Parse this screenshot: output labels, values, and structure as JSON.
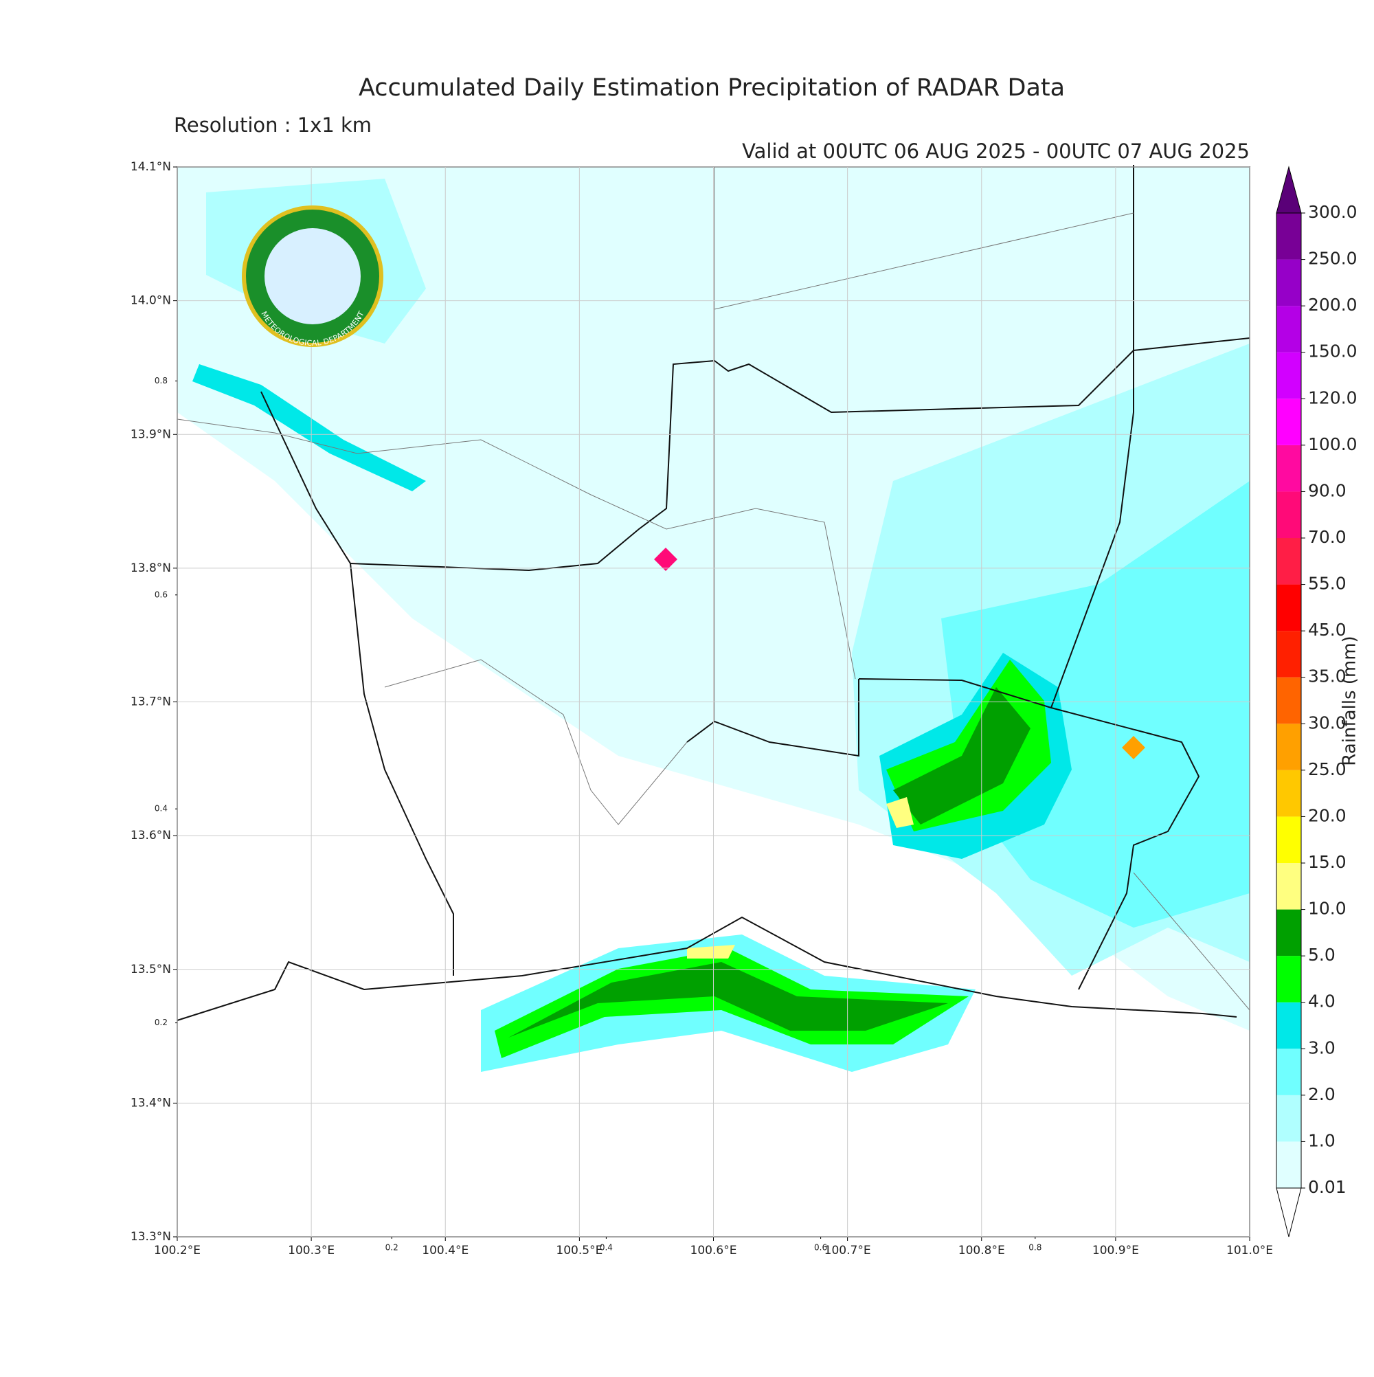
{
  "title": "Accumulated Daily Estimation Precipitation of RADAR Data",
  "subtitle": "Resolution : 1x1 km",
  "valid": "Valid at 00UTC 06 AUG 2025 - 00UTC 07 AUG 2025",
  "logo": {
    "english": "METEOROLOGICAL DEPARTMENT"
  },
  "map": {
    "xlim": [
      100.2,
      101.0
    ],
    "ylim": [
      13.3,
      14.1
    ],
    "xticks": [
      {
        "value": 100.2,
        "label": "100.2°E"
      },
      {
        "value": 100.3,
        "label": "100.3°E"
      },
      {
        "value": 100.4,
        "label": "100.4°E"
      },
      {
        "value": 100.5,
        "label": "100.5°E"
      },
      {
        "value": 100.6,
        "label": "100.6°E"
      },
      {
        "value": 100.7,
        "label": "100.7°E"
      },
      {
        "value": 100.8,
        "label": "100.8°E"
      },
      {
        "value": 100.9,
        "label": "100.9°E"
      },
      {
        "value": 101.0,
        "label": "101.0°E"
      }
    ],
    "yticks": [
      {
        "value": 13.3,
        "label": "13.3°N"
      },
      {
        "value": 13.4,
        "label": "13.4°N"
      },
      {
        "value": 13.5,
        "label": "13.5°N"
      },
      {
        "value": 13.6,
        "label": "13.6°N"
      },
      {
        "value": 13.7,
        "label": "13.7°N"
      },
      {
        "value": 13.8,
        "label": "13.8°N"
      },
      {
        "value": 13.9,
        "label": "13.9°N"
      },
      {
        "value": 14.0,
        "label": "14.0°N"
      },
      {
        "value": 14.1,
        "label": "14.1°N"
      }
    ],
    "grid": true
  },
  "inset_axis": {
    "xlim": [
      0,
      1
    ],
    "ylim": [
      0,
      1
    ],
    "xticks": [
      0.2,
      0.4,
      0.6,
      0.8
    ],
    "yticks": [
      0.2,
      0.4,
      0.6,
      0.8
    ]
  },
  "colorbar": {
    "label": "Rainfalls (mm)",
    "levels": [
      {
        "value": 0.01,
        "label": "0.01"
      },
      {
        "value": 1,
        "label": "1.0"
      },
      {
        "value": 2,
        "label": "2.0"
      },
      {
        "value": 3,
        "label": "3.0"
      },
      {
        "value": 4,
        "label": "4.0"
      },
      {
        "value": 5,
        "label": "5.0"
      },
      {
        "value": 10,
        "label": "10.0"
      },
      {
        "value": 15,
        "label": "15.0"
      },
      {
        "value": 20,
        "label": "20.0"
      },
      {
        "value": 25,
        "label": "25.0"
      },
      {
        "value": 30,
        "label": "30.0"
      },
      {
        "value": 35,
        "label": "35.0"
      },
      {
        "value": 45,
        "label": "45.0"
      },
      {
        "value": 55,
        "label": "55.0"
      },
      {
        "value": 70,
        "label": "70.0"
      },
      {
        "value": 90,
        "label": "90.0"
      },
      {
        "value": 100,
        "label": "100.0"
      },
      {
        "value": 120,
        "label": "120.0"
      },
      {
        "value": 150,
        "label": "150.0"
      },
      {
        "value": 200,
        "label": "200.0"
      },
      {
        "value": 250,
        "label": "250.0"
      },
      {
        "value": 300,
        "label": "300.0"
      }
    ],
    "colors": [
      "#e0ffff",
      "#b0ffff",
      "#70ffff",
      "#00e8e8",
      "#00ff00",
      "#00a000",
      "#ffff80",
      "#ffff00",
      "#ffc800",
      "#ffa000",
      "#ff6400",
      "#ff2000",
      "#ff0000",
      "#ff1e46",
      "#ff0a78",
      "#ff0aa0",
      "#ff00ff",
      "#d200ff",
      "#b400e6",
      "#9600c8",
      "#780096"
    ],
    "over_color": "#5a0078",
    "under_color": "#ffffff"
  }
}
